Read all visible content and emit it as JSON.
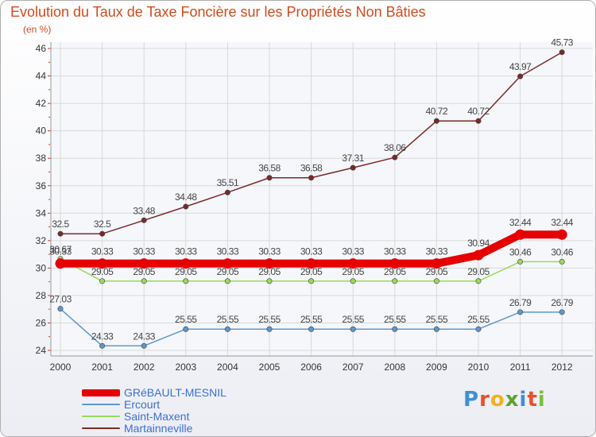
{
  "chart_data": {
    "type": "line",
    "title": "Evolution du Taux de Taxe Foncière sur les Propriétés Non Bâties",
    "ylabel": "(en %)",
    "xlabel": "",
    "categories": [
      "2000",
      "2001",
      "2002",
      "2003",
      "2004",
      "2005",
      "2006",
      "2007",
      "2008",
      "2009",
      "2010",
      "2011",
      "2012"
    ],
    "ylim": [
      24,
      46
    ],
    "yticks": [
      24,
      26,
      28,
      30,
      32,
      34,
      36,
      38,
      40,
      42,
      44,
      46
    ],
    "grid": true,
    "legend_position": "bottom-left",
    "series": [
      {
        "name": "Martainneville",
        "color": "#7a2a26",
        "values": [
          32.5,
          32.5,
          33.48,
          34.48,
          35.51,
          36.58,
          36.58,
          37.31,
          38.06,
          40.72,
          40.72,
          43.97,
          45.73
        ],
        "labels": [
          "32.5",
          "32.5",
          "33.48",
          "34.48",
          "35.51",
          "36.58",
          "36.58",
          "37.31",
          "38.06",
          "40.72",
          "40.72",
          "43.97",
          "45.73"
        ]
      },
      {
        "name": "Saint-Maxent",
        "color": "#99d95c",
        "values": [
          30.67,
          29.05,
          29.05,
          29.05,
          29.05,
          29.05,
          29.05,
          29.05,
          29.05,
          29.05,
          29.05,
          30.46,
          30.46
        ],
        "labels": [
          "30.67",
          "29.05",
          "29.05",
          "29.05",
          "29.05",
          "29.05",
          "29.05",
          "29.05",
          "29.05",
          "29.05",
          "29.05",
          "30.46",
          "30.46"
        ]
      },
      {
        "name": "Ercourt",
        "color": "#5b98cf",
        "values": [
          27.03,
          24.33,
          24.33,
          25.55,
          25.55,
          25.55,
          25.55,
          25.55,
          25.55,
          25.55,
          25.55,
          26.79,
          26.79
        ],
        "labels": [
          "27.03",
          "24.33",
          "24.33",
          "25.55",
          "25.55",
          "25.55",
          "25.55",
          "25.55",
          "25.55",
          "25.55",
          "25.55",
          "26.79",
          "26.79"
        ]
      },
      {
        "name": "GRéBAULT-MESNIL",
        "color": "#e60000",
        "values": [
          30.33,
          30.33,
          30.33,
          30.33,
          30.33,
          30.33,
          30.33,
          30.33,
          30.33,
          30.33,
          30.94,
          32.44,
          32.44
        ],
        "labels": [
          "30.33",
          "30.33",
          "30.33",
          "30.33",
          "30.33",
          "30.33",
          "30.33",
          "30.33",
          "30.33",
          "30.33",
          "30.94",
          "32.44",
          "32.44"
        ]
      }
    ]
  },
  "legend": {
    "items": [
      {
        "label": "GRéBAULT-MESNIL",
        "color": "#e60000"
      },
      {
        "label": "Ercourt",
        "color": "#5b98cf"
      },
      {
        "label": "Saint-Maxent",
        "color": "#99d95c"
      },
      {
        "label": "Martainneville",
        "color": "#7a2a26"
      }
    ]
  },
  "brand": {
    "letters": [
      "P",
      "r",
      "o",
      "x",
      "i",
      "t",
      "i"
    ],
    "colors": [
      "#3f8fd6",
      "#e8502a",
      "#f2b01e",
      "#5aa42e",
      "#3f8fd6",
      "#e8502a",
      "#7cbf3a"
    ]
  }
}
